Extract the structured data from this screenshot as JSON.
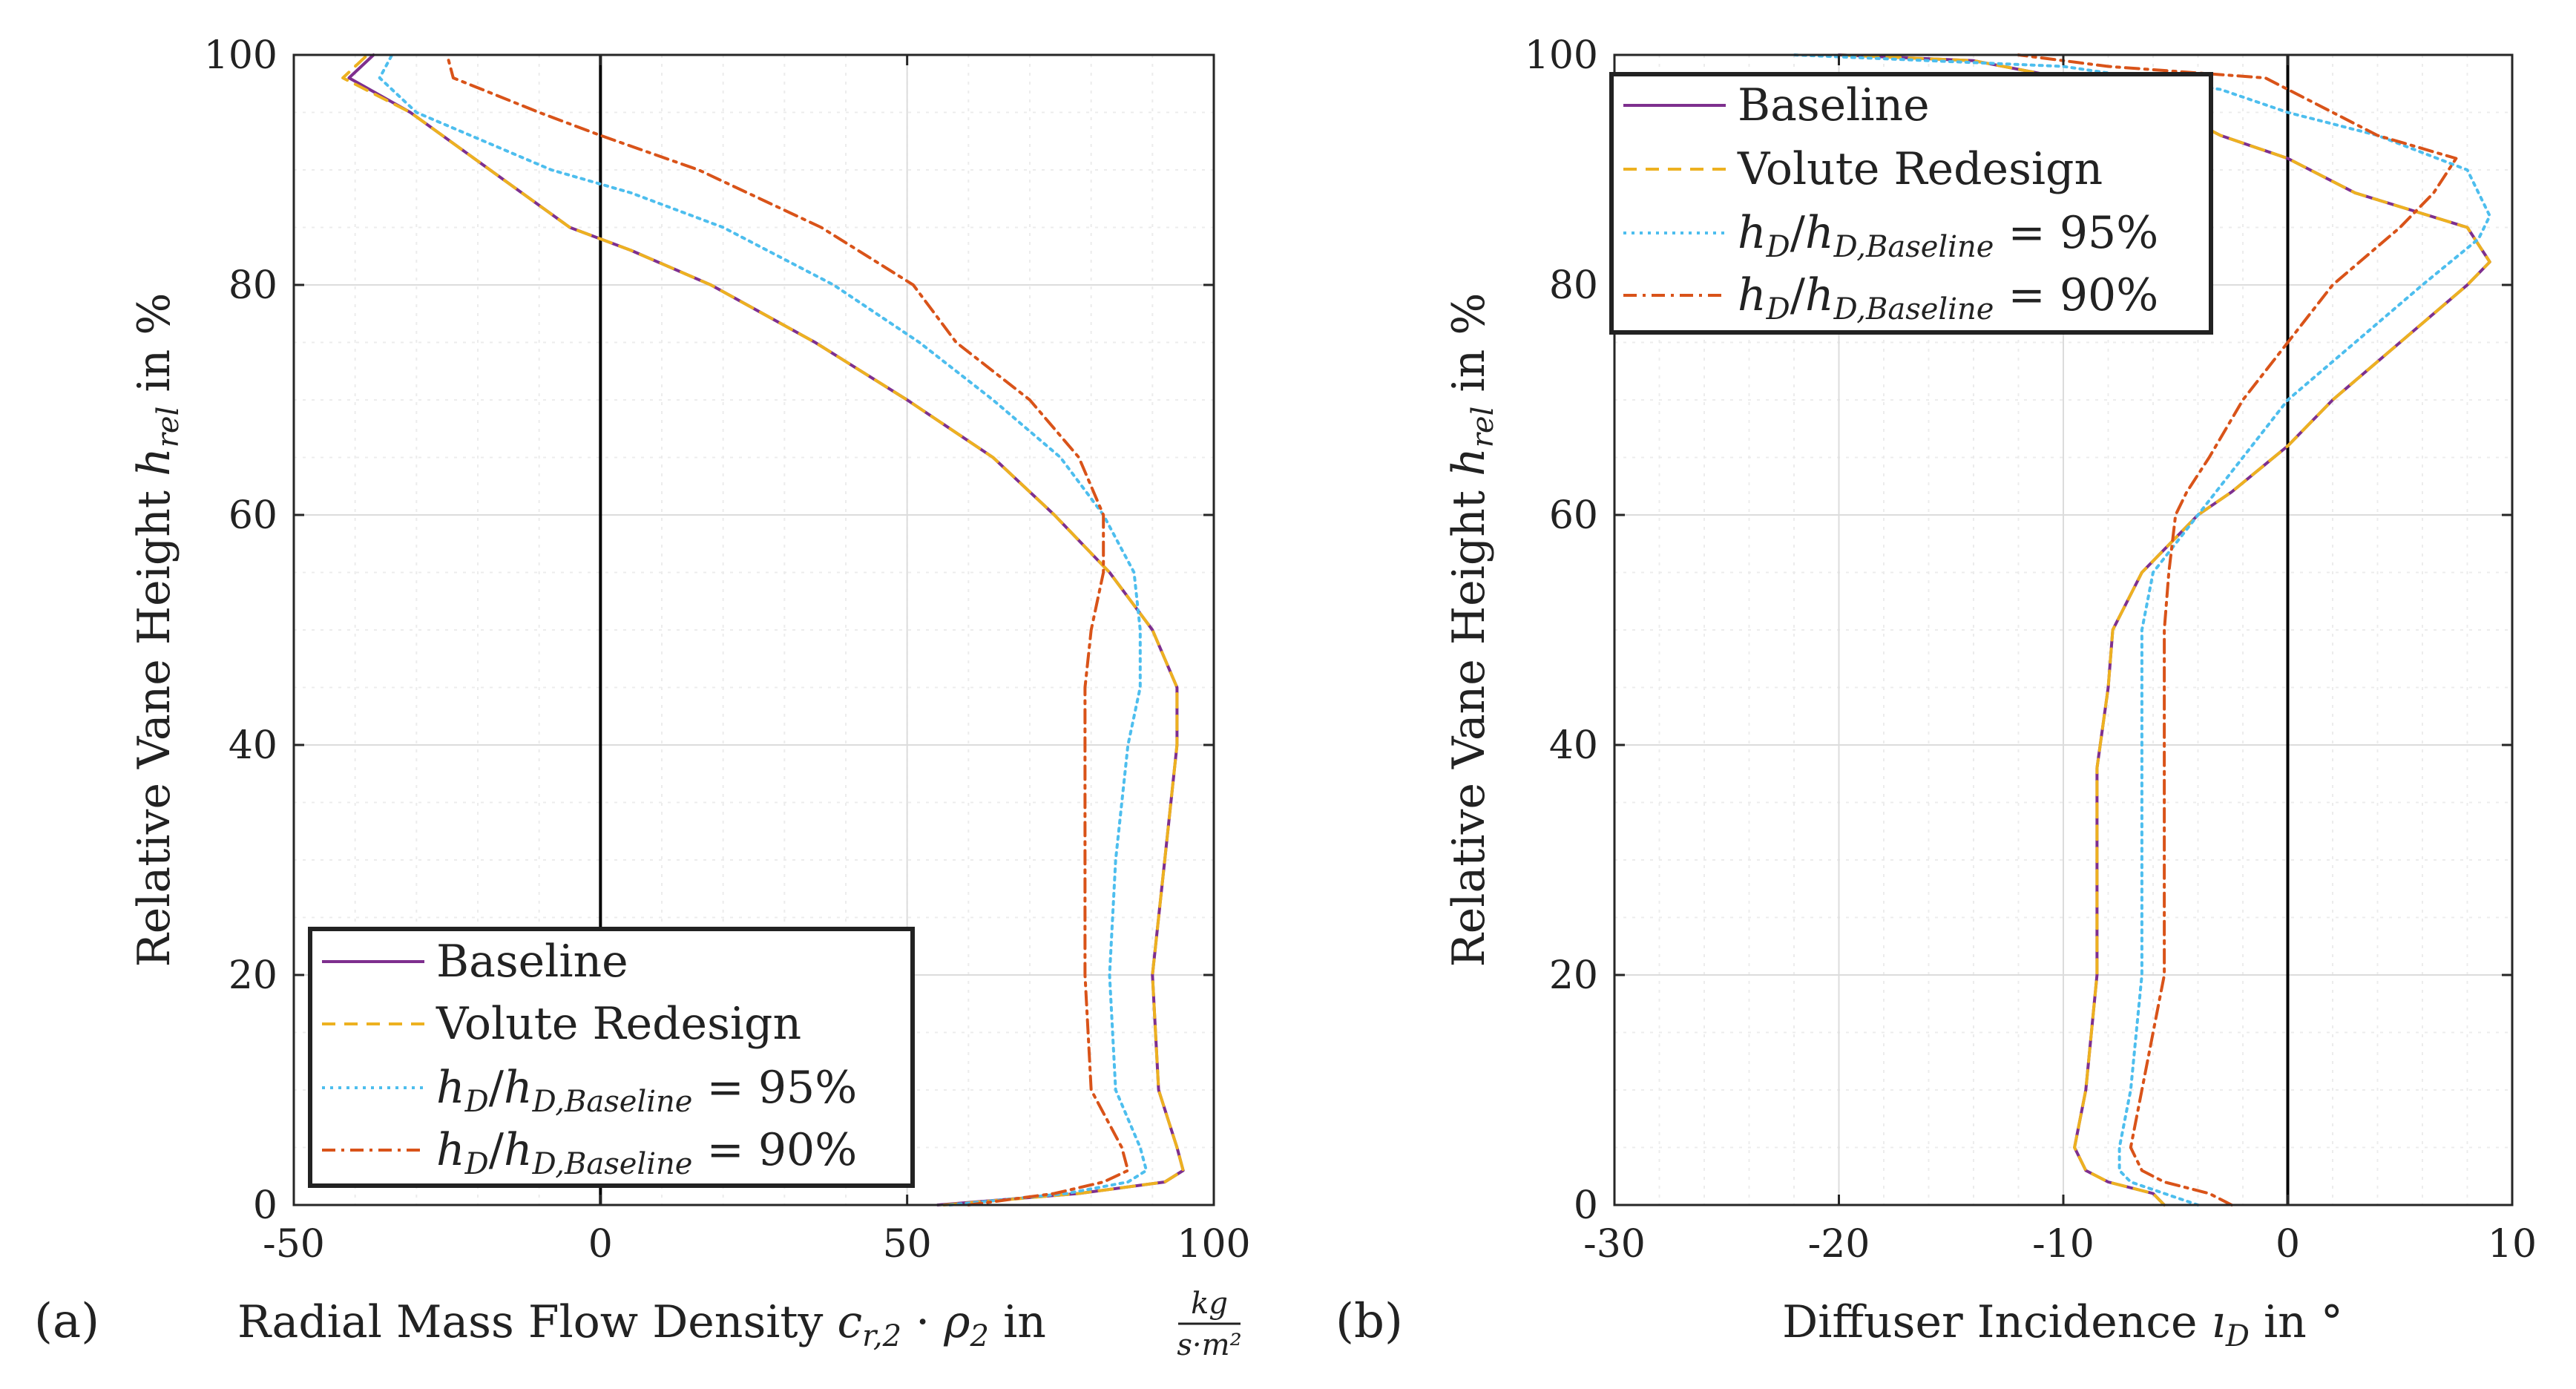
{
  "colors": {
    "baseline": "#7e2f8e",
    "volute": "#edb120",
    "h95": "#4dbeee",
    "h90": "#d95319",
    "axis": "#262626",
    "grid": "#dcdcdc",
    "zero_line": "#000000"
  },
  "chart_data": [
    {
      "type": "line",
      "panel_label": "(a)",
      "xlabel": "Radial Mass Flow Density c_{r,2} · ρ_2 in kg/(s·m²)",
      "xlabel_parts": {
        "text": "Radial Mass Flow Density",
        "var": "c",
        "var_sub": "r,2",
        "dot": "·",
        "rho": "ρ",
        "rho_sub": "2",
        "in": "in",
        "unit_num": "kg",
        "unit_den": "s·m²"
      },
      "ylabel": "Relative Vane Height h_rel in %",
      "ylabel_parts": {
        "text": "Relative Vane Height",
        "var": "h",
        "var_sub": "rel",
        "unit": "in %"
      },
      "xlim": [
        -50,
        100
      ],
      "ylim": [
        0,
        100
      ],
      "xticks": [
        "-50",
        "0",
        "50",
        "100"
      ],
      "yticks": [
        "0",
        "20",
        "40",
        "60",
        "80",
        "100"
      ],
      "grid": true,
      "legend_position": "bottom-left",
      "series": [
        {
          "name": "Baseline",
          "key": "baseline",
          "dash": "solid",
          "y": [
            0,
            1,
            2,
            3,
            5,
            10,
            20,
            30,
            40,
            45,
            50,
            55,
            60,
            65,
            70,
            75,
            80,
            83,
            85,
            90,
            95,
            98,
            100
          ],
          "x": [
            55,
            78,
            92,
            95,
            94,
            91,
            90,
            92,
            94,
            94,
            90,
            83,
            74,
            64,
            50,
            35,
            18,
            5,
            -5,
            -18,
            -31,
            -41,
            -37
          ]
        },
        {
          "name": "Volute Redesign",
          "key": "volute",
          "dash": "dashed",
          "y": [
            0,
            1,
            2,
            3,
            5,
            10,
            20,
            30,
            40,
            45,
            50,
            55,
            60,
            65,
            70,
            75,
            80,
            83,
            85,
            90,
            95,
            98,
            100
          ],
          "x": [
            56,
            78,
            92,
            95,
            94,
            91,
            90,
            92,
            94,
            94,
            90,
            83,
            74,
            64,
            50,
            35,
            18,
            5,
            -5,
            -18,
            -31,
            -42,
            -38
          ]
        },
        {
          "name": "h_D/h_D,Baseline = 95%",
          "key": "h95",
          "dash": "dotted",
          "y": [
            0,
            1,
            2,
            3,
            5,
            10,
            20,
            30,
            40,
            45,
            50,
            55,
            60,
            65,
            70,
            75,
            80,
            85,
            88,
            90,
            95,
            98,
            100
          ],
          "x": [
            57,
            76,
            86,
            89,
            88,
            84,
            83,
            84,
            86,
            88,
            88,
            87,
            82,
            75,
            64,
            52,
            38,
            20,
            5,
            -8,
            -30,
            -36,
            -34
          ]
        },
        {
          "name": "h_D/h_D,Baseline = 90%",
          "key": "h90",
          "dash": "dashdot",
          "y": [
            0,
            1,
            2,
            3,
            5,
            10,
            20,
            30,
            40,
            45,
            50,
            55,
            60,
            65,
            70,
            75,
            80,
            85,
            90,
            93,
            95,
            98,
            100
          ],
          "x": [
            60,
            74,
            82,
            86,
            85,
            80,
            79,
            79,
            79,
            79,
            80,
            82,
            82,
            78,
            70,
            58,
            51,
            36,
            16,
            0,
            -10,
            -24,
            -25
          ]
        }
      ]
    },
    {
      "type": "line",
      "panel_label": "(b)",
      "xlabel": "Diffuser Incidence ı_D in °",
      "xlabel_parts": {
        "text": "Diffuser Incidence",
        "var": "ı",
        "var_sub": "D",
        "unit": "in °"
      },
      "ylabel": "Relative Vane Height h_rel in %",
      "ylabel_parts": {
        "text": "Relative Vane Height",
        "var": "h",
        "var_sub": "rel",
        "unit": "in %"
      },
      "xlim": [
        -30,
        10
      ],
      "ylim": [
        0,
        100
      ],
      "xticks": [
        "-30",
        "-20",
        "-10",
        "0",
        "10"
      ],
      "yticks": [
        "0",
        "20",
        "40",
        "60",
        "80",
        "100"
      ],
      "grid": true,
      "legend_position": "top-left",
      "series": [
        {
          "name": "Baseline",
          "key": "baseline",
          "dash": "solid",
          "y": [
            0,
            1,
            2,
            3,
            5,
            10,
            20,
            30,
            38,
            45,
            50,
            55,
            60,
            62,
            66,
            70,
            75,
            80,
            82,
            85,
            88,
            91,
            93,
            95,
            98,
            99.5,
            100
          ],
          "x": [
            -5.5,
            -6,
            -8,
            -9,
            -9.5,
            -9,
            -8.5,
            -8.5,
            -8.5,
            -8,
            -7.8,
            -6.5,
            -4,
            -2.5,
            0,
            2,
            5,
            8,
            9,
            8,
            3,
            0,
            -3,
            -5,
            -10,
            -14,
            -20
          ]
        },
        {
          "name": "Volute Redesign",
          "key": "volute",
          "dash": "dashed",
          "y": [
            0,
            1,
            2,
            3,
            5,
            10,
            20,
            30,
            38,
            45,
            50,
            55,
            60,
            62,
            66,
            70,
            75,
            80,
            82,
            85,
            88,
            91,
            93,
            95,
            98,
            99.5,
            100
          ],
          "x": [
            -5.5,
            -6,
            -8,
            -9,
            -9.5,
            -9,
            -8.5,
            -8.5,
            -8.5,
            -8,
            -7.8,
            -6.5,
            -4,
            -2.5,
            0,
            2,
            5,
            8,
            9,
            8,
            3,
            0,
            -3,
            -5,
            -10,
            -14,
            -20
          ]
        },
        {
          "name": "h_D/h_D,Baseline = 95%",
          "key": "h95",
          "dash": "dotted",
          "y": [
            0,
            1,
            2,
            3,
            5,
            10,
            20,
            30,
            40,
            45,
            50,
            55,
            60,
            65,
            70,
            75,
            80,
            84,
            86,
            90,
            93,
            95,
            97,
            99,
            100
          ],
          "x": [
            -4,
            -5.5,
            -7,
            -7.5,
            -7.5,
            -7,
            -6.5,
            -6.5,
            -6.5,
            -6.5,
            -6.5,
            -6,
            -4,
            -2,
            0,
            3,
            6,
            8.5,
            9,
            8,
            4,
            0,
            -3,
            -10,
            -22
          ]
        },
        {
          "name": "h_D/h_D,Baseline = 90%",
          "key": "h90",
          "dash": "dashdot",
          "y": [
            0,
            1,
            2,
            3,
            5,
            10,
            20,
            30,
            40,
            50,
            55,
            60,
            62,
            65,
            70,
            75,
            80,
            85,
            88,
            91,
            93,
            96,
            98,
            99,
            100
          ],
          "x": [
            -2.5,
            -3.5,
            -5.5,
            -6.5,
            -7,
            -6.5,
            -5.5,
            -5.5,
            -5.5,
            -5.5,
            -5.3,
            -5,
            -4.5,
            -3.5,
            -2,
            0,
            2,
            5,
            6.5,
            7.5,
            4,
            1,
            -1,
            -8,
            -12
          ]
        }
      ]
    }
  ],
  "legend": {
    "baseline": "Baseline",
    "volute": "Volute Redesign",
    "h95": {
      "var": "h",
      "sub": "D",
      "slash": "/",
      "var2": "h",
      "sub2": "D,Baseline",
      "eq": "= 95%"
    },
    "h90": {
      "var": "h",
      "sub": "D",
      "slash": "/",
      "var2": "h",
      "sub2": "D,Baseline",
      "eq": "= 90%"
    }
  }
}
